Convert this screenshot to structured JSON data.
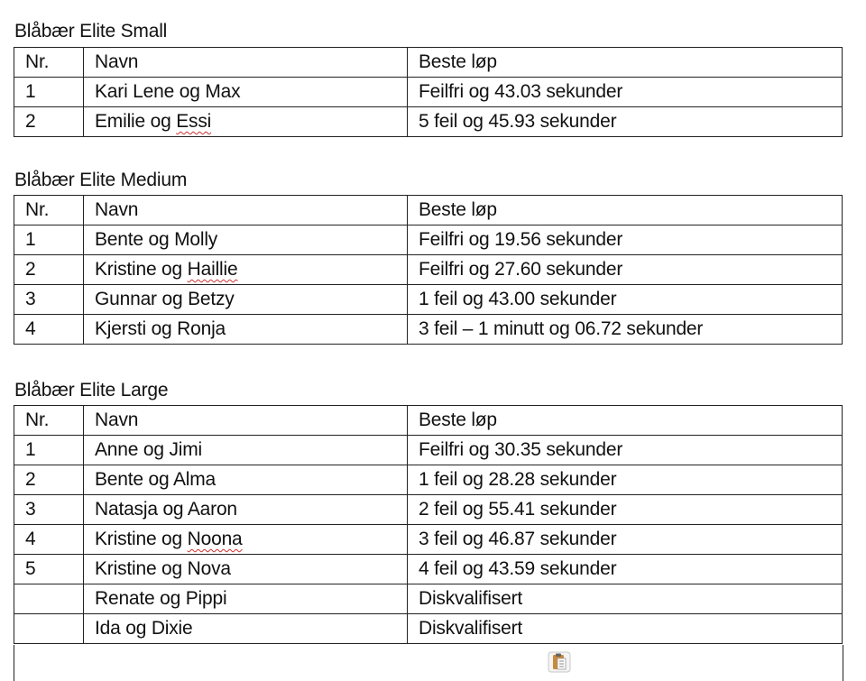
{
  "headers": {
    "nr": "Nr.",
    "name": "Navn",
    "result": "Beste løp"
  },
  "sections": [
    {
      "title": "Blåbær Elite Small",
      "rows": [
        {
          "nr": "1",
          "name": "Kari Lene og Max",
          "flag": "",
          "result": "Feilfri og 43.03 sekunder"
        },
        {
          "nr": "2",
          "name": "Emilie og ",
          "flag": "Essi",
          "result": "5 feil og 45.93 sekunder"
        }
      ]
    },
    {
      "title": "Blåbær Elite Medium",
      "rows": [
        {
          "nr": "1",
          "name": "Bente og Molly",
          "flag": "",
          "result": "Feilfri og 19.56 sekunder"
        },
        {
          "nr": "2",
          "name": "Kristine og ",
          "flag": "Haillie",
          "result": "Feilfri og 27.60 sekunder"
        },
        {
          "nr": "3",
          "name": "Gunnar og Betzy",
          "flag": "",
          "result": "1 feil og 43.00 sekunder"
        },
        {
          "nr": "4",
          "name": "Kjersti og Ronja",
          "flag": "",
          "result": "3 feil – 1 minutt og 06.72 sekunder"
        }
      ]
    },
    {
      "title": "Blåbær Elite Large",
      "rows": [
        {
          "nr": "1",
          "name": "Anne og Jimi",
          "flag": "",
          "result": "Feilfri og 30.35 sekunder"
        },
        {
          "nr": "2",
          "name": "Bente og Alma",
          "flag": "",
          "result": "1 feil og 28.28 sekunder"
        },
        {
          "nr": "3",
          "name": "Natasja og Aaron",
          "flag": "",
          "result": "2 feil og 55.41 sekunder"
        },
        {
          "nr": "4",
          "name": "Kristine og ",
          "flag": "Noona",
          "result": "3 feil og 46.87 sekunder"
        },
        {
          "nr": "5",
          "name": "Kristine og Nova",
          "flag": "",
          "result": "4 feil og 43.59 sekunder"
        },
        {
          "nr": "",
          "name": "Renate og Pippi",
          "flag": "",
          "result": "Diskvalifisert"
        },
        {
          "nr": "",
          "name": "Ida og Dixie",
          "flag": "",
          "result": "Diskvalifisert"
        }
      ]
    }
  ],
  "icons": {
    "paste": "clipboard-paste-options-icon"
  },
  "colors": {
    "spellcheck": "#d03030"
  }
}
